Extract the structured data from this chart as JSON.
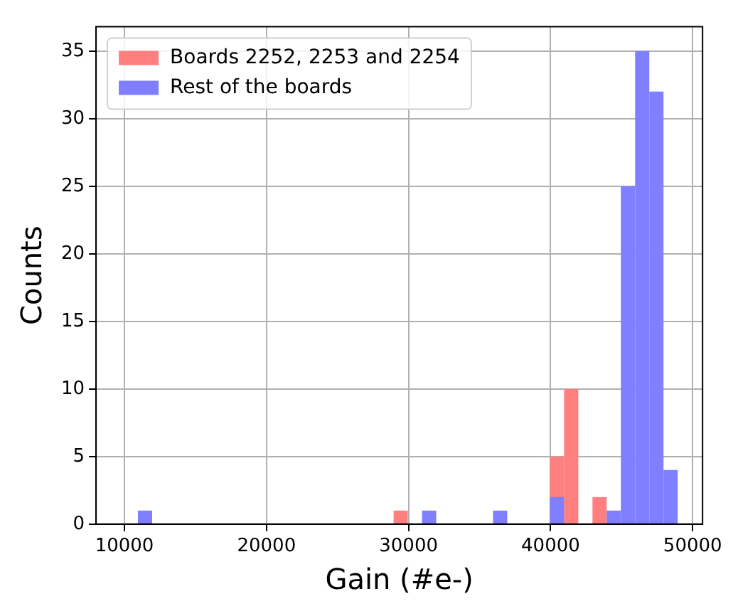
{
  "chart_data": {
    "type": "histogram",
    "xlabel": "Gain (#e-)",
    "ylabel": "Counts",
    "xlim": [
      8000,
      50700
    ],
    "ylim": [
      0,
      36.8
    ],
    "xticks": [
      10000,
      20000,
      30000,
      40000,
      50000
    ],
    "yticks": [
      0,
      5,
      10,
      15,
      20,
      25,
      30,
      35
    ],
    "grid": true,
    "legend": "top left",
    "bins": [
      10950,
      11950,
      12950,
      13950,
      14950,
      15950,
      16950,
      17950,
      18950,
      19950,
      20950,
      21950,
      22950,
      23950,
      24950,
      25950,
      26950,
      27950,
      28950,
      29950,
      30950,
      31950,
      32950,
      33950,
      34950,
      35950,
      36950,
      37950,
      38950,
      39950,
      40950,
      41950,
      42950,
      43950,
      44950,
      45950,
      46950,
      47950,
      48950
    ],
    "series": [
      {
        "name": "Boards 2252, 2253 and 2254",
        "color": "#ff7f7f",
        "values": [
          0,
          0,
          0,
          0,
          0,
          0,
          0,
          0,
          0,
          0,
          0,
          0,
          0,
          0,
          0,
          0,
          0,
          0,
          1,
          0,
          0,
          0,
          0,
          0,
          0,
          0,
          0,
          0,
          0,
          5,
          10,
          0,
          2,
          0,
          0,
          0,
          0,
          0
        ]
      },
      {
        "name": "Rest of the boards",
        "color": "#7f7fff",
        "values": [
          1,
          0,
          0,
          0,
          0,
          0,
          0,
          0,
          0,
          0,
          0,
          0,
          0,
          0,
          0,
          0,
          0,
          0,
          0,
          0,
          1,
          0,
          0,
          0,
          0,
          1,
          0,
          0,
          0,
          2,
          0,
          0,
          0,
          1,
          25,
          35,
          32,
          4
        ]
      }
    ]
  }
}
